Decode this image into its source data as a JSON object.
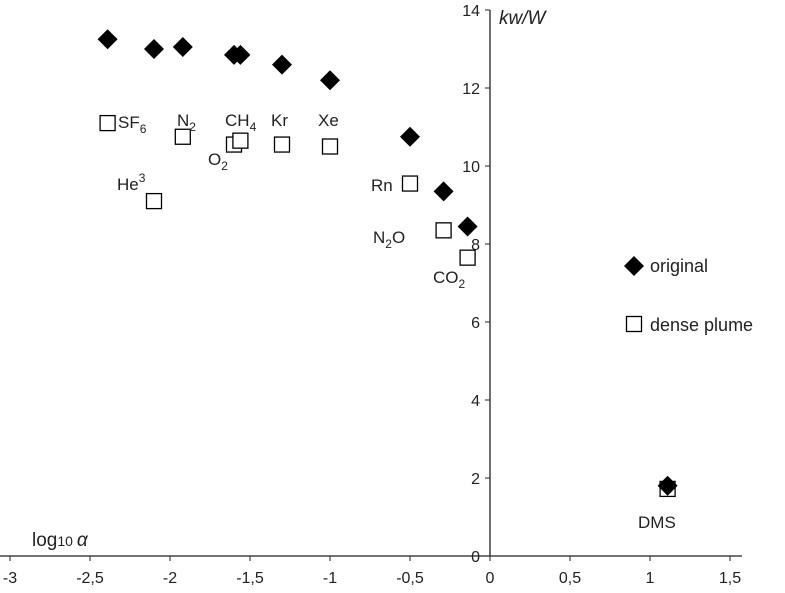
{
  "chart_data": {
    "type": "scatter",
    "title": "",
    "xlabel": "log10 α",
    "ylabel": "kw/W",
    "xlim": [
      -3,
      1.5
    ],
    "ylim": [
      0,
      14
    ],
    "x_ticks": [
      -3,
      -2.5,
      -2,
      -1.5,
      -1,
      -0.5,
      0,
      0.5,
      1,
      1.5
    ],
    "x_tick_labels": [
      "-3",
      "-2,5",
      "-2",
      "-1,5",
      "-1",
      "-0,5",
      "0",
      "0,5",
      "1",
      "1,5"
    ],
    "y_ticks": [
      0,
      2,
      4,
      6,
      8,
      10,
      12,
      14
    ],
    "y_tick_labels": [
      "0",
      "2",
      "4",
      "6",
      "8",
      "10",
      "12",
      "14"
    ],
    "grid": false,
    "legend_position": "right",
    "series": [
      {
        "name": "original",
        "marker": "diamond-filled",
        "x": [
          -2.39,
          -2.1,
          -1.92,
          -1.6,
          -1.56,
          -1.3,
          -1.0,
          -0.5,
          -0.29,
          -0.14,
          1.11
        ],
        "y": [
          13.25,
          13.0,
          13.05,
          12.85,
          12.85,
          12.6,
          12.2,
          10.75,
          9.35,
          8.45,
          1.8
        ]
      },
      {
        "name": "dense plume",
        "marker": "square-open",
        "x": [
          -2.39,
          -2.1,
          -1.92,
          -1.6,
          -1.56,
          -1.3,
          -1.0,
          -0.5,
          -0.29,
          -0.14,
          1.11
        ],
        "y": [
          11.1,
          9.1,
          10.75,
          10.55,
          10.65,
          10.55,
          10.5,
          9.55,
          8.35,
          7.65,
          1.72
        ]
      }
    ],
    "point_labels": [
      {
        "main": "SF",
        "sub": "6",
        "sup": ""
      },
      {
        "main": "He",
        "sub": "",
        "sup": "3"
      },
      {
        "main": "N",
        "sub": "2",
        "sup": ""
      },
      {
        "main": "O",
        "sub": "2",
        "sup": ""
      },
      {
        "main": "CH",
        "sub": "4",
        "sup": ""
      },
      {
        "main": "Kr",
        "sub": "",
        "sup": ""
      },
      {
        "main": "Xe",
        "sub": "",
        "sup": ""
      },
      {
        "main": "Rn",
        "sub": "",
        "sup": ""
      },
      {
        "main": "N",
        "sub": "2",
        "sup": "",
        "tail": "O"
      },
      {
        "main": "CO",
        "sub": "2",
        "sup": ""
      },
      {
        "main": "DMS",
        "sub": "",
        "sup": ""
      }
    ],
    "colors": {
      "marker_fill": "#000000",
      "axis": "#222222",
      "text": "#222222"
    }
  }
}
